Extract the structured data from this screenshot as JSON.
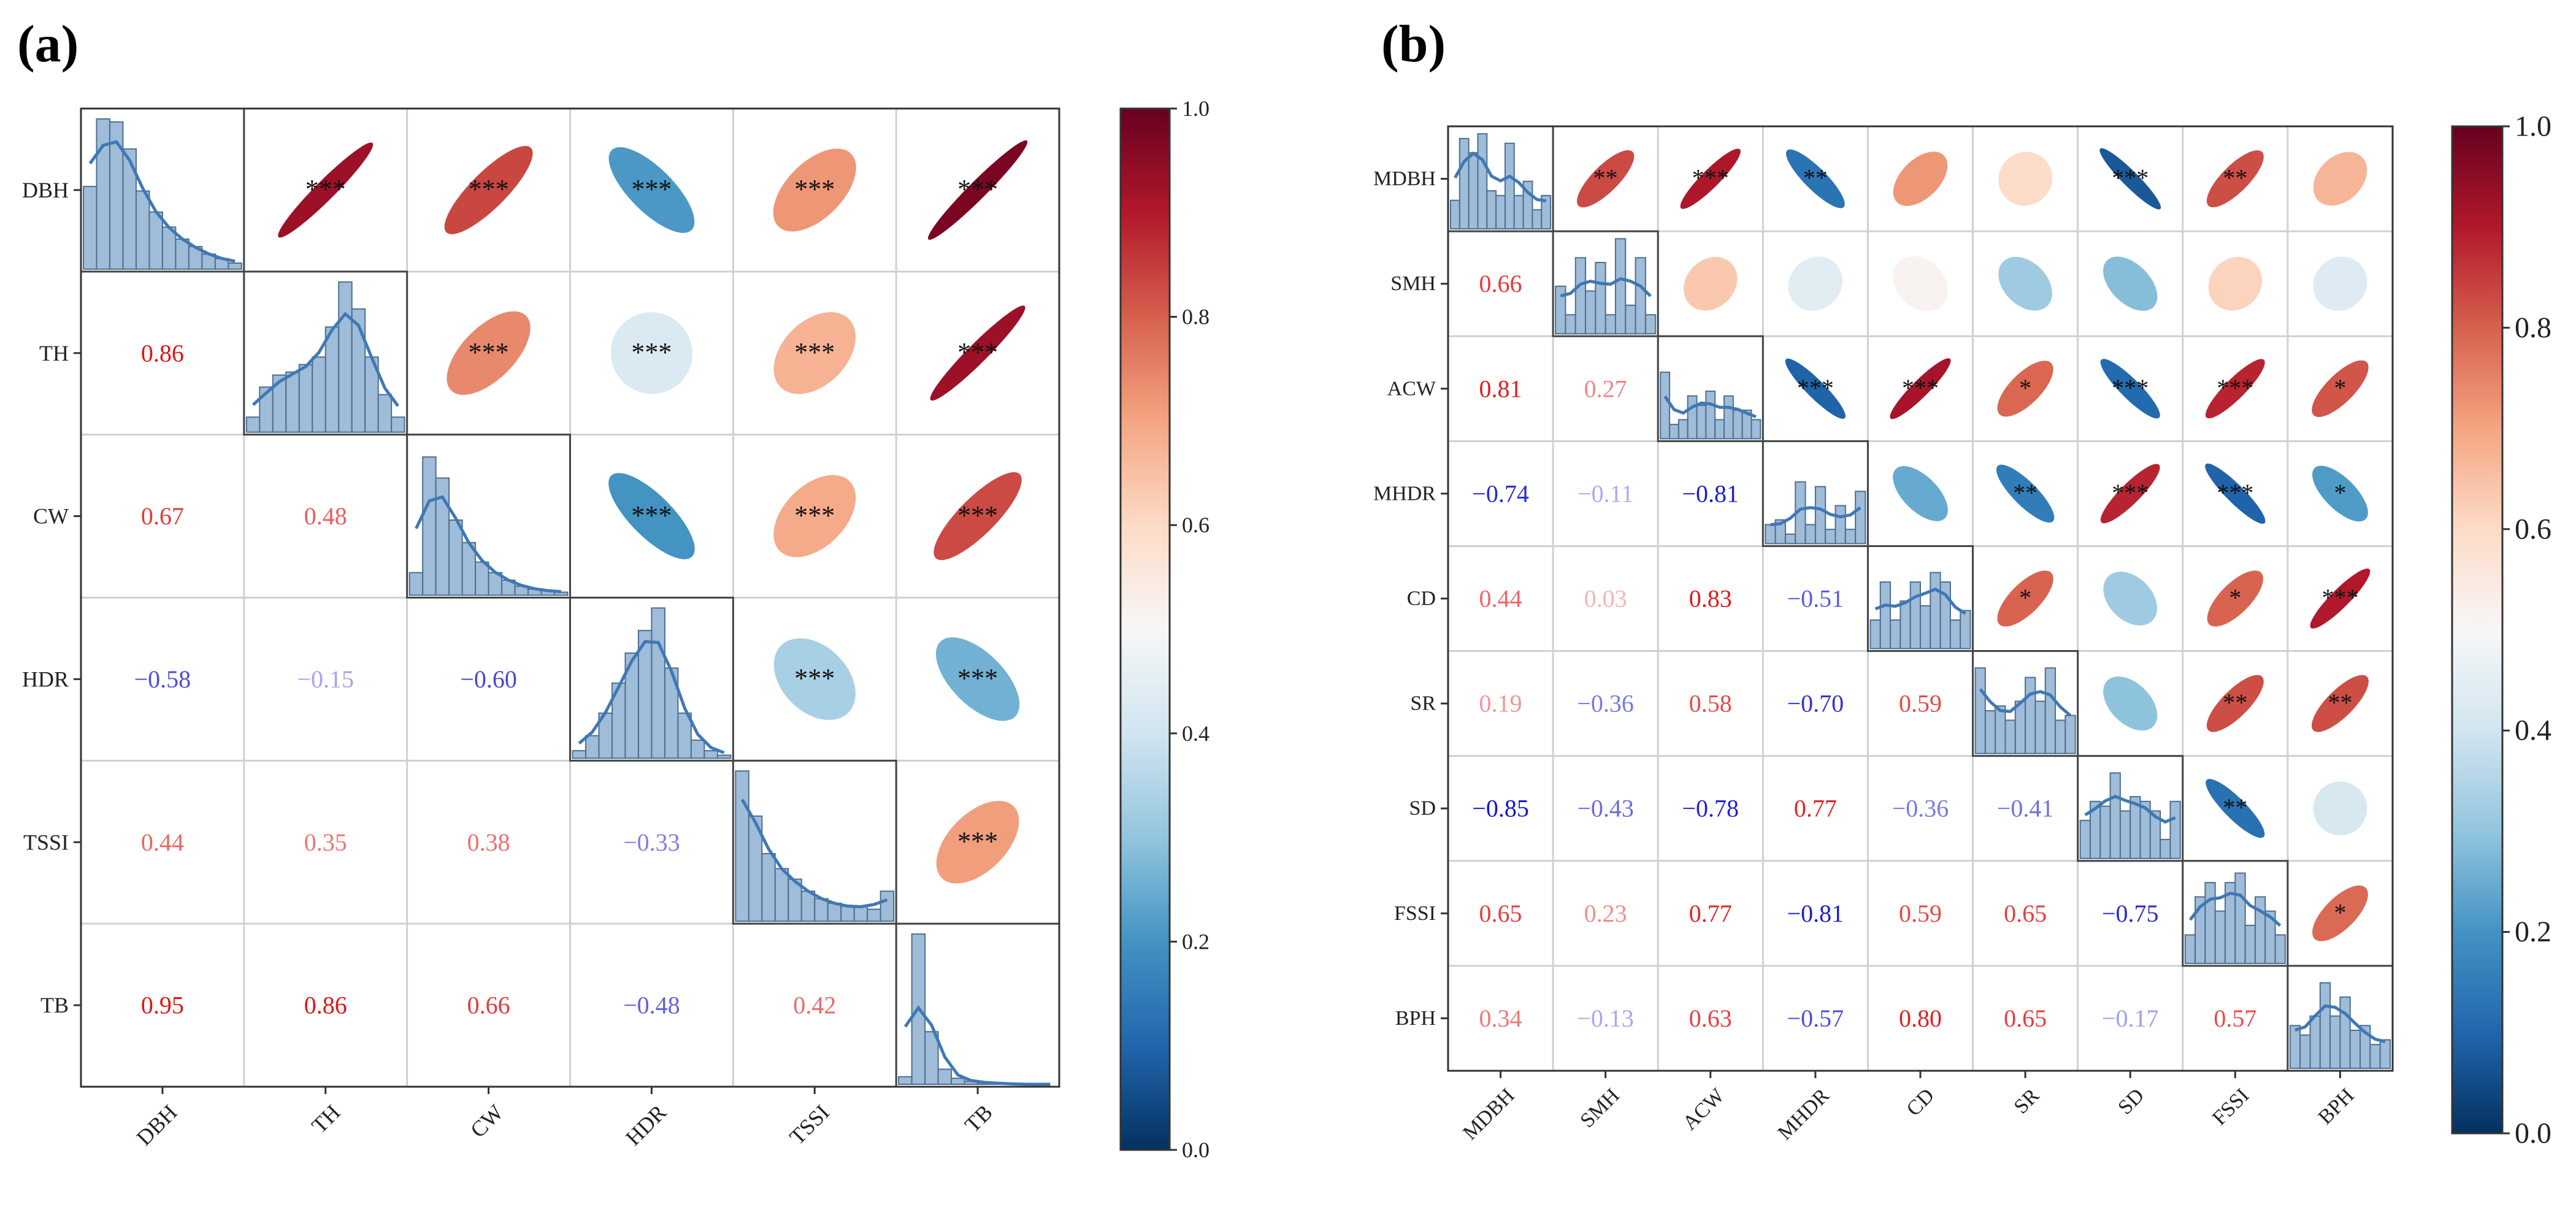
{
  "chart_data": [
    {
      "id": "a",
      "type": "heatmap",
      "subtype": "correlation-matrix-ellipse",
      "panel_label": "(a)",
      "variables": [
        "DBH",
        "TH",
        "CW",
        "HDR",
        "TSSI",
        "TB"
      ],
      "lower_values": [
        [
          "",
          "",
          "",
          "",
          "",
          ""
        ],
        [
          "0.86",
          "",
          "",
          "",
          "",
          ""
        ],
        [
          "0.67",
          "0.48",
          "",
          "",
          "",
          ""
        ],
        [
          "−0.58",
          "−0.15",
          "−0.60",
          "",
          "",
          ""
        ],
        [
          "0.44",
          "0.35",
          "0.38",
          "−0.33",
          "",
          ""
        ],
        [
          "0.95",
          "0.86",
          "0.66",
          "−0.48",
          "0.42",
          ""
        ]
      ],
      "upper_r": [
        [
          null,
          0.86,
          0.67,
          -0.58,
          0.44,
          0.95
        ],
        [
          null,
          null,
          0.48,
          -0.15,
          0.35,
          0.86
        ],
        [
          null,
          null,
          null,
          -0.6,
          0.38,
          0.66
        ],
        [
          null,
          null,
          null,
          null,
          -0.33,
          -0.48
        ],
        [
          null,
          null,
          null,
          null,
          null,
          0.42
        ],
        [
          null,
          null,
          null,
          null,
          null,
          null
        ]
      ],
      "upper_stars": [
        [
          "",
          "***",
          "***",
          "***",
          "***",
          "***"
        ],
        [
          "",
          "",
          "***",
          "***",
          "***",
          "***"
        ],
        [
          "",
          "",
          "",
          "***",
          "***",
          "***"
        ],
        [
          "",
          "",
          "",
          "",
          "***",
          "***"
        ],
        [
          "",
          "",
          "",
          "",
          "",
          "***"
        ],
        [
          "",
          "",
          "",
          "",
          "",
          ""
        ]
      ],
      "histograms": [
        [
          0.55,
          1,
          0.98,
          0.8,
          0.52,
          0.38,
          0.28,
          0.2,
          0.15,
          0.1,
          0.07,
          0.04
        ],
        [
          0.1,
          0.3,
          0.38,
          0.4,
          0.45,
          0.5,
          0.7,
          1,
          0.82,
          0.5,
          0.25,
          0.1
        ],
        [
          0.15,
          0.92,
          0.78,
          0.5,
          0.35,
          0.22,
          0.15,
          0.1,
          0.06,
          0.04,
          0.03,
          0.02
        ],
        [
          0.05,
          0.15,
          0.3,
          0.5,
          0.7,
          0.85,
          1,
          0.6,
          0.3,
          0.12,
          0.05,
          0.02
        ],
        [
          1,
          0.7,
          0.45,
          0.35,
          0.28,
          0.2,
          0.15,
          0.12,
          0.1,
          0.1,
          0.08,
          0.2
        ],
        [
          0.05,
          1,
          0.35,
          0.1,
          0.04,
          0.02,
          0.01,
          0.01,
          0.0,
          0.0,
          0.0,
          0.0
        ]
      ],
      "colorbar": {
        "min": 0.0,
        "max": 1.0,
        "ticks": [
          "0.0",
          "0.2",
          "0.4",
          "0.6",
          "0.8",
          "1.0"
        ]
      }
    },
    {
      "id": "b",
      "type": "heatmap",
      "subtype": "correlation-matrix-ellipse",
      "panel_label": "(b)",
      "variables": [
        "MDBH",
        "SMH",
        "ACW",
        "MHDR",
        "CD",
        "SR",
        "SD",
        "FSSI",
        "BPH"
      ],
      "lower_values": [
        [
          "",
          "",
          "",
          "",
          "",
          "",
          "",
          "",
          ""
        ],
        [
          "0.66",
          "",
          "",
          "",
          "",
          "",
          "",
          "",
          ""
        ],
        [
          "0.81",
          "0.27",
          "",
          "",
          "",
          "",
          "",
          "",
          ""
        ],
        [
          "−0.74",
          "−0.11",
          "−0.81",
          "",
          "",
          "",
          "",
          "",
          ""
        ],
        [
          "0.44",
          "0.03",
          "0.83",
          "−0.51",
          "",
          "",
          "",
          "",
          ""
        ],
        [
          "0.19",
          "−0.36",
          "0.58",
          "−0.70",
          "0.59",
          "",
          "",
          "",
          ""
        ],
        [
          "−0.85",
          "−0.43",
          "−0.78",
          "0.77",
          "−0.36",
          "−0.41",
          "",
          "",
          ""
        ],
        [
          "0.65",
          "0.23",
          "0.77",
          "−0.81",
          "0.59",
          "0.65",
          "−0.75",
          "",
          ""
        ],
        [
          "0.34",
          "−0.13",
          "0.63",
          "−0.57",
          "0.80",
          "0.65",
          "−0.17",
          "0.57",
          ""
        ]
      ],
      "upper_r": [
        [
          null,
          0.66,
          0.81,
          -0.74,
          0.44,
          0.19,
          -0.85,
          0.65,
          0.34
        ],
        [
          null,
          null,
          0.27,
          -0.11,
          0.03,
          -0.36,
          -0.43,
          0.23,
          -0.13
        ],
        [
          null,
          null,
          null,
          -0.81,
          0.83,
          0.58,
          -0.78,
          0.77,
          0.63
        ],
        [
          null,
          null,
          null,
          null,
          -0.51,
          -0.7,
          0.77,
          -0.81,
          -0.57
        ],
        [
          null,
          null,
          null,
          null,
          null,
          0.59,
          -0.36,
          0.59,
          0.8
        ],
        [
          null,
          null,
          null,
          null,
          null,
          null,
          -0.41,
          0.65,
          0.65
        ],
        [
          null,
          null,
          null,
          null,
          null,
          null,
          null,
          -0.75,
          -0.17
        ],
        [
          null,
          null,
          null,
          null,
          null,
          null,
          null,
          null,
          0.57
        ],
        [
          null,
          null,
          null,
          null,
          null,
          null,
          null,
          null,
          null
        ]
      ],
      "upper_stars": [
        [
          "",
          "**",
          "***",
          "**",
          "",
          "",
          "***",
          "**",
          ""
        ],
        [
          "",
          "",
          "",
          "",
          "",
          "",
          "",
          "",
          ""
        ],
        [
          "",
          "",
          "",
          "***",
          "***",
          "*",
          "***",
          "***",
          "*"
        ],
        [
          "",
          "",
          "",
          "",
          "",
          "**",
          "***",
          "***",
          "*"
        ],
        [
          "",
          "",
          "",
          "",
          "",
          "*",
          "",
          "*",
          "***"
        ],
        [
          "",
          "",
          "",
          "",
          "",
          "",
          "",
          "**",
          "**"
        ],
        [
          "",
          "",
          "",
          "",
          "",
          "",
          "",
          "**",
          ""
        ],
        [
          "",
          "",
          "",
          "",
          "",
          "",
          "",
          "",
          "*"
        ],
        [
          "",
          "",
          "",
          "",
          "",
          "",
          "",
          "",
          ""
        ]
      ],
      "histograms": [
        [
          0.3,
          0.95,
          0.8,
          1,
          0.4,
          0.35,
          0.9,
          0.35,
          0.5,
          0.2,
          0.35
        ],
        [
          0.5,
          0.2,
          0.8,
          0.45,
          0.75,
          0.2,
          1,
          0.3,
          0.8,
          0.2
        ],
        [
          0.7,
          0.15,
          0.2,
          0.45,
          0.35,
          0.5,
          0.2,
          0.45,
          0.3,
          0.3,
          0.2
        ],
        [
          0.2,
          0.25,
          0.1,
          0.65,
          0.2,
          0.6,
          0.15,
          0.4,
          0.15,
          0.55
        ],
        [
          0.3,
          0.7,
          0.3,
          0.5,
          0.7,
          0.45,
          0.8,
          0.7,
          0.3,
          0.4
        ],
        [
          0.9,
          0.45,
          0.5,
          0.35,
          0.55,
          0.8,
          0.55,
          0.9,
          0.35,
          0.4
        ],
        [
          0.4,
          0.6,
          0.55,
          0.9,
          0.5,
          0.65,
          0.6,
          0.5,
          0.2,
          0.6
        ],
        [
          0.3,
          0.7,
          0.85,
          0.55,
          0.85,
          0.95,
          0.4,
          0.7,
          0.55,
          0.3
        ],
        [
          0.45,
          0.35,
          0.55,
          0.9,
          0.55,
          0.75,
          0.4,
          0.45,
          0.25,
          0.3
        ]
      ],
      "colorbar": {
        "min": 0.0,
        "max": 1.0,
        "ticks": [
          "0.0",
          "0.2",
          "0.4",
          "0.6",
          "0.8",
          "1.0"
        ]
      }
    }
  ]
}
